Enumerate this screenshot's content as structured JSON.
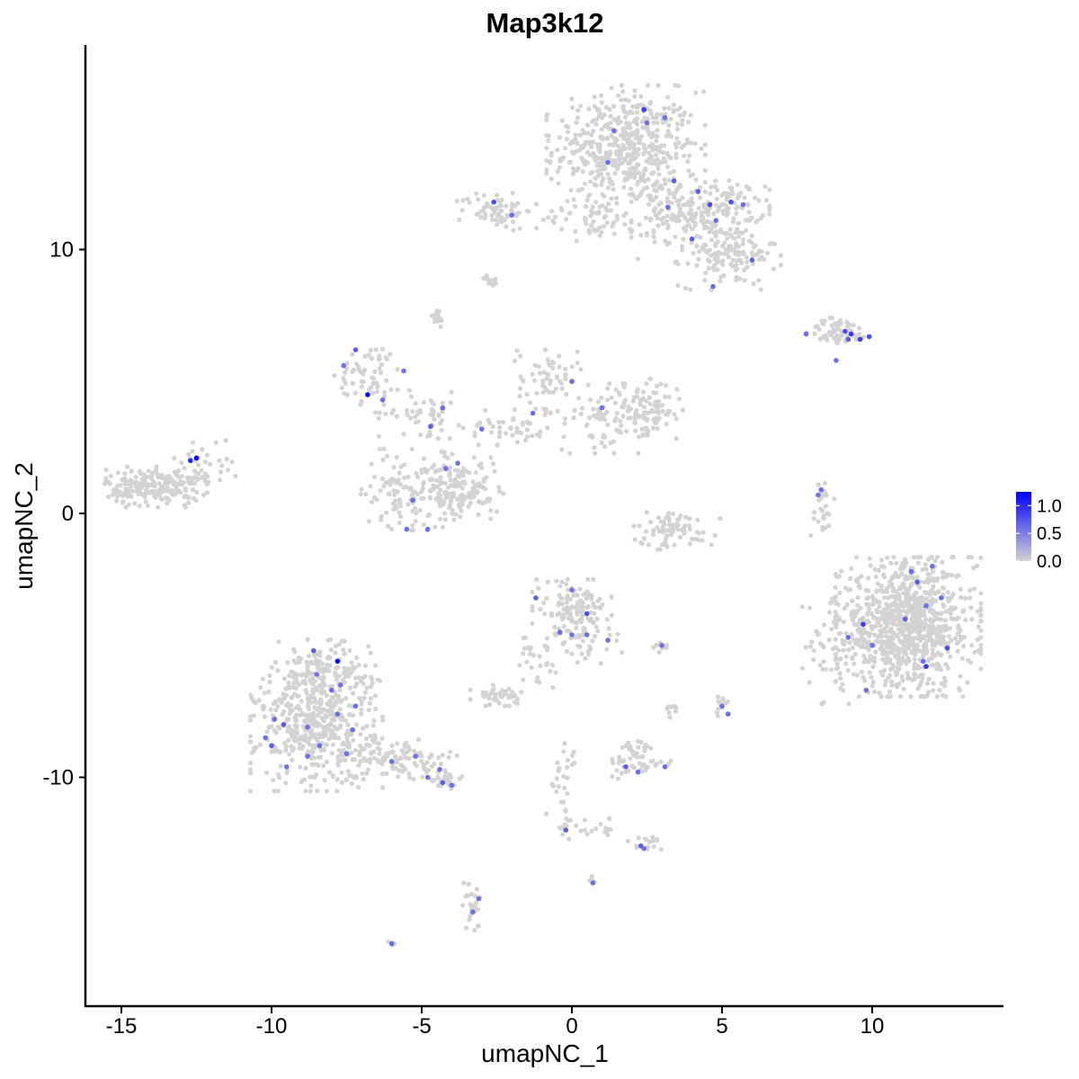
{
  "chart_data": {
    "type": "scatter",
    "title": "Map3k12",
    "xlabel": "umapNC_1",
    "ylabel": "umapNC_2",
    "xlim": [
      -16.5,
      14.5
    ],
    "ylim": [
      -18.5,
      17.8
    ],
    "x_ticks": [
      {
        "value": -15,
        "label": "-15"
      },
      {
        "value": -10,
        "label": "-10"
      },
      {
        "value": -5,
        "label": "-5"
      },
      {
        "value": 0,
        "label": "0"
      },
      {
        "value": 5,
        "label": "5"
      },
      {
        "value": 10,
        "label": "10"
      }
    ],
    "y_ticks": [
      {
        "value": 10,
        "label": "10"
      },
      {
        "value": 0,
        "label": "0"
      },
      {
        "value": -10,
        "label": "-10"
      }
    ],
    "grid": false,
    "legend": {
      "position": "right",
      "min": 0.0,
      "max": 1.25,
      "ticks": [
        {
          "value": 1.0,
          "label": "1.0"
        },
        {
          "value": 0.5,
          "label": "0.5"
        },
        {
          "value": 0.0,
          "label": "0.0"
        }
      ]
    },
    "colors": {
      "low": "#d3d3d3",
      "high": "#0000ff"
    },
    "clusters": [
      {
        "cx": 1.8,
        "cy": 13.8,
        "sx": 1.2,
        "sy": 1.1,
        "n": 520
      },
      {
        "cx": 4.6,
        "cy": 11.6,
        "sx": 0.9,
        "sy": 0.5,
        "n": 160
      },
      {
        "cx": 5.2,
        "cy": 9.8,
        "sx": 0.8,
        "sy": 0.6,
        "n": 140
      },
      {
        "cx": -2.5,
        "cy": 11.5,
        "sx": 0.6,
        "sy": 0.35,
        "n": 70
      },
      {
        "cx": 0.8,
        "cy": 11.2,
        "sx": 0.9,
        "sy": 0.4,
        "n": 60
      },
      {
        "cx": 3.3,
        "cy": 10.9,
        "sx": 0.6,
        "sy": 0.8,
        "n": 60
      },
      {
        "cx": -2.7,
        "cy": 8.8,
        "sx": 0.12,
        "sy": 0.1,
        "n": 12
      },
      {
        "cx": -4.5,
        "cy": 7.4,
        "sx": 0.12,
        "sy": 0.2,
        "n": 18
      },
      {
        "cx": 8.9,
        "cy": 6.9,
        "sx": 0.5,
        "sy": 0.25,
        "n": 60
      },
      {
        "cx": -6.7,
        "cy": 5.3,
        "sx": 0.55,
        "sy": 0.55,
        "n": 60
      },
      {
        "cx": -5.0,
        "cy": 3.8,
        "sx": 0.7,
        "sy": 0.4,
        "n": 50
      },
      {
        "cx": -0.8,
        "cy": 5.2,
        "sx": 0.5,
        "sy": 0.6,
        "n": 60
      },
      {
        "cx": 1.5,
        "cy": 3.6,
        "sx": 0.9,
        "sy": 0.6,
        "n": 90
      },
      {
        "cx": 2.5,
        "cy": 4.0,
        "sx": 0.6,
        "sy": 0.5,
        "n": 70
      },
      {
        "cx": -2.0,
        "cy": 3.3,
        "sx": 0.8,
        "sy": 0.4,
        "n": 50
      },
      {
        "cx": -4.3,
        "cy": 1.3,
        "sx": 0.4,
        "sy": 0.7,
        "n": 40
      },
      {
        "cx": -3.6,
        "cy": 0.8,
        "sx": 0.6,
        "sy": 0.6,
        "n": 120
      },
      {
        "cx": -5.7,
        "cy": 0.9,
        "sx": 0.6,
        "sy": 0.7,
        "n": 100
      },
      {
        "cx": -13.9,
        "cy": 1.0,
        "sx": 0.8,
        "sy": 0.35,
        "n": 220
      },
      {
        "cx": -12.3,
        "cy": 1.8,
        "sx": 0.5,
        "sy": 0.5,
        "n": 40
      },
      {
        "cx": 3.4,
        "cy": -0.6,
        "sx": 0.7,
        "sy": 0.35,
        "n": 80
      },
      {
        "cx": 8.3,
        "cy": 0.2,
        "sx": 0.2,
        "sy": 0.6,
        "n": 25
      },
      {
        "cx": 11.2,
        "cy": -4.3,
        "sx": 1.1,
        "sy": 1.2,
        "n": 900
      },
      {
        "cx": 9.0,
        "cy": -4.8,
        "sx": 0.6,
        "sy": 1.1,
        "n": 90
      },
      {
        "cx": 0.0,
        "cy": -3.6,
        "sx": 0.6,
        "sy": 0.5,
        "n": 120
      },
      {
        "cx": 0.5,
        "cy": -4.8,
        "sx": 0.6,
        "sy": 0.4,
        "n": 40
      },
      {
        "cx": -1.2,
        "cy": -5.8,
        "sx": 0.3,
        "sy": 0.6,
        "n": 25
      },
      {
        "cx": -2.5,
        "cy": -6.9,
        "sx": 0.4,
        "sy": 0.18,
        "n": 40
      },
      {
        "cx": 2.9,
        "cy": -5.0,
        "sx": 0.15,
        "sy": 0.12,
        "n": 8
      },
      {
        "cx": 5.0,
        "cy": -7.3,
        "sx": 0.15,
        "sy": 0.25,
        "n": 12
      },
      {
        "cx": 3.3,
        "cy": -7.5,
        "sx": 0.12,
        "sy": 0.2,
        "n": 8
      },
      {
        "cx": -8.5,
        "cy": -8.1,
        "sx": 1.0,
        "sy": 1.1,
        "n": 450
      },
      {
        "cx": -8.3,
        "cy": -6.1,
        "sx": 0.8,
        "sy": 0.6,
        "n": 150
      },
      {
        "cx": -5.8,
        "cy": -9.3,
        "sx": 0.9,
        "sy": 0.35,
        "n": 100
      },
      {
        "cx": -4.2,
        "cy": -10.1,
        "sx": 0.35,
        "sy": 0.2,
        "n": 30
      },
      {
        "cx": 2.2,
        "cy": -9.5,
        "sx": 0.5,
        "sy": 0.25,
        "n": 40
      },
      {
        "cx": 2.2,
        "cy": -8.9,
        "sx": 0.25,
        "sy": 0.2,
        "n": 15
      },
      {
        "cx": -0.3,
        "cy": -10.0,
        "sx": 0.25,
        "sy": 0.7,
        "n": 25
      },
      {
        "cx": -0.2,
        "cy": -11.9,
        "sx": 0.2,
        "sy": 0.2,
        "n": 12
      },
      {
        "cx": 0.9,
        "cy": -11.9,
        "sx": 0.5,
        "sy": 0.2,
        "n": 15
      },
      {
        "cx": 2.4,
        "cy": -12.5,
        "sx": 0.3,
        "sy": 0.15,
        "n": 15
      },
      {
        "cx": -3.3,
        "cy": -14.7,
        "sx": 0.15,
        "sy": 0.5,
        "n": 25
      },
      {
        "cx": 0.6,
        "cy": -13.9,
        "sx": 0.08,
        "sy": 0.08,
        "n": 5
      },
      {
        "cx": -6.0,
        "cy": -16.3,
        "sx": 0.06,
        "sy": 0.05,
        "n": 4
      }
    ],
    "highlighted_points": [
      {
        "x": -12.5,
        "y": 2.1,
        "value": 1.25
      },
      {
        "x": -12.7,
        "y": 2.0,
        "value": 1.0
      },
      {
        "x": -6.8,
        "y": 4.5,
        "value": 1.25
      },
      {
        "x": -7.8,
        "y": -5.6,
        "value": 1.25
      },
      {
        "x": -7.2,
        "y": 6.2,
        "value": 0.7
      },
      {
        "x": -7.6,
        "y": 5.6,
        "value": 0.6
      },
      {
        "x": -6.3,
        "y": 4.3,
        "value": 0.6
      },
      {
        "x": -5.6,
        "y": 5.4,
        "value": 0.6
      },
      {
        "x": -2.6,
        "y": 11.8,
        "value": 0.8
      },
      {
        "x": -2.0,
        "y": 11.3,
        "value": 0.6
      },
      {
        "x": 1.4,
        "y": 14.5,
        "value": 0.6
      },
      {
        "x": 2.4,
        "y": 15.3,
        "value": 0.9
      },
      {
        "x": 2.5,
        "y": 14.8,
        "value": 0.6
      },
      {
        "x": 3.1,
        "y": 15.0,
        "value": 0.6
      },
      {
        "x": 3.4,
        "y": 12.6,
        "value": 0.7
      },
      {
        "x": 3.2,
        "y": 11.6,
        "value": 0.6
      },
      {
        "x": 4.2,
        "y": 12.2,
        "value": 0.7
      },
      {
        "x": 4.6,
        "y": 11.7,
        "value": 0.8
      },
      {
        "x": 4.8,
        "y": 11.1,
        "value": 0.6
      },
      {
        "x": 5.3,
        "y": 11.8,
        "value": 0.8
      },
      {
        "x": 5.7,
        "y": 11.7,
        "value": 0.6
      },
      {
        "x": 4.0,
        "y": 10.4,
        "value": 0.7
      },
      {
        "x": 4.7,
        "y": 8.6,
        "value": 0.6
      },
      {
        "x": 6.0,
        "y": 9.6,
        "value": 0.7
      },
      {
        "x": 1.2,
        "y": 13.3,
        "value": 0.6
      },
      {
        "x": 7.8,
        "y": 6.8,
        "value": 0.6
      },
      {
        "x": 9.1,
        "y": 6.9,
        "value": 0.8
      },
      {
        "x": 9.3,
        "y": 6.8,
        "value": 0.9
      },
      {
        "x": 9.6,
        "y": 6.6,
        "value": 0.9
      },
      {
        "x": 9.9,
        "y": 6.7,
        "value": 0.8
      },
      {
        "x": 9.2,
        "y": 6.6,
        "value": 0.7
      },
      {
        "x": 8.8,
        "y": 5.8,
        "value": 0.6
      },
      {
        "x": -4.7,
        "y": 3.3,
        "value": 0.7
      },
      {
        "x": -4.3,
        "y": 4.0,
        "value": 0.6
      },
      {
        "x": -1.3,
        "y": 3.8,
        "value": 0.6
      },
      {
        "x": 0.0,
        "y": 5.0,
        "value": 0.6
      },
      {
        "x": 1.0,
        "y": 4.0,
        "value": 0.6
      },
      {
        "x": -3.0,
        "y": 3.2,
        "value": 0.6
      },
      {
        "x": -4.2,
        "y": 1.7,
        "value": 0.6
      },
      {
        "x": -3.8,
        "y": 1.9,
        "value": 0.6
      },
      {
        "x": -5.3,
        "y": 0.5,
        "value": 0.6
      },
      {
        "x": -5.5,
        "y": -0.6,
        "value": 0.6
      },
      {
        "x": -4.8,
        "y": -0.6,
        "value": 0.6
      },
      {
        "x": 8.2,
        "y": 0.7,
        "value": 0.6
      },
      {
        "x": 8.3,
        "y": 0.9,
        "value": 0.6
      },
      {
        "x": 9.7,
        "y": -4.2,
        "value": 0.9
      },
      {
        "x": 11.1,
        "y": -4.0,
        "value": 0.7
      },
      {
        "x": 11.5,
        "y": -2.6,
        "value": 0.7
      },
      {
        "x": 11.8,
        "y": -3.5,
        "value": 0.6
      },
      {
        "x": 11.3,
        "y": -2.2,
        "value": 0.6
      },
      {
        "x": 12.0,
        "y": -2.0,
        "value": 0.6
      },
      {
        "x": 12.3,
        "y": -3.2,
        "value": 0.6
      },
      {
        "x": 10.0,
        "y": -5.0,
        "value": 0.6
      },
      {
        "x": 11.7,
        "y": -5.6,
        "value": 0.6
      },
      {
        "x": 11.8,
        "y": -5.8,
        "value": 0.9
      },
      {
        "x": 12.5,
        "y": -5.1,
        "value": 0.8
      },
      {
        "x": 9.8,
        "y": -6.7,
        "value": 0.6
      },
      {
        "x": 9.2,
        "y": -4.7,
        "value": 0.6
      },
      {
        "x": -1.2,
        "y": -3.2,
        "value": 0.7
      },
      {
        "x": 0.0,
        "y": -2.9,
        "value": 0.6
      },
      {
        "x": 0.5,
        "y": -3.8,
        "value": 0.8
      },
      {
        "x": -0.4,
        "y": -4.5,
        "value": 0.6
      },
      {
        "x": 0.0,
        "y": -4.6,
        "value": 0.6
      },
      {
        "x": 0.5,
        "y": -4.6,
        "value": 0.6
      },
      {
        "x": 1.2,
        "y": -4.8,
        "value": 0.6
      },
      {
        "x": 3.0,
        "y": -5.0,
        "value": 0.6
      },
      {
        "x": 5.0,
        "y": -7.3,
        "value": 0.6
      },
      {
        "x": 5.2,
        "y": -7.6,
        "value": 0.6
      },
      {
        "x": -8.6,
        "y": -5.2,
        "value": 0.7
      },
      {
        "x": -8.5,
        "y": -6.1,
        "value": 0.6
      },
      {
        "x": -8.0,
        "y": -6.7,
        "value": 0.6
      },
      {
        "x": -7.7,
        "y": -6.5,
        "value": 0.6
      },
      {
        "x": -9.9,
        "y": -7.8,
        "value": 0.6
      },
      {
        "x": -9.6,
        "y": -8.0,
        "value": 0.7
      },
      {
        "x": -8.8,
        "y": -8.1,
        "value": 0.6
      },
      {
        "x": -7.8,
        "y": -7.6,
        "value": 0.6
      },
      {
        "x": -7.2,
        "y": -7.3,
        "value": 0.6
      },
      {
        "x": -10.2,
        "y": -8.5,
        "value": 0.6
      },
      {
        "x": -10.0,
        "y": -8.8,
        "value": 0.7
      },
      {
        "x": -8.4,
        "y": -8.8,
        "value": 0.6
      },
      {
        "x": -7.3,
        "y": -8.2,
        "value": 0.6
      },
      {
        "x": -7.5,
        "y": -9.1,
        "value": 0.6
      },
      {
        "x": -9.5,
        "y": -9.6,
        "value": 0.6
      },
      {
        "x": -8.8,
        "y": -9.2,
        "value": 0.6
      },
      {
        "x": -6.0,
        "y": -9.4,
        "value": 0.6
      },
      {
        "x": -4.8,
        "y": -10.0,
        "value": 0.6
      },
      {
        "x": -4.3,
        "y": -10.2,
        "value": 0.7
      },
      {
        "x": -4.0,
        "y": -10.3,
        "value": 0.6
      },
      {
        "x": -4.4,
        "y": -9.7,
        "value": 0.6
      },
      {
        "x": -5.2,
        "y": -9.2,
        "value": 0.6
      },
      {
        "x": 1.8,
        "y": -9.6,
        "value": 0.7
      },
      {
        "x": 2.2,
        "y": -9.8,
        "value": 0.6
      },
      {
        "x": 3.1,
        "y": -9.6,
        "value": 0.6
      },
      {
        "x": -0.2,
        "y": -12.0,
        "value": 0.7
      },
      {
        "x": 2.3,
        "y": -12.6,
        "value": 0.7
      },
      {
        "x": 2.4,
        "y": -12.7,
        "value": 0.6
      },
      {
        "x": 0.7,
        "y": -14.0,
        "value": 0.6
      },
      {
        "x": -3.3,
        "y": -15.1,
        "value": 0.6
      },
      {
        "x": -3.1,
        "y": -14.6,
        "value": 0.6
      },
      {
        "x": -6.0,
        "y": -16.3,
        "value": 0.6
      }
    ]
  }
}
